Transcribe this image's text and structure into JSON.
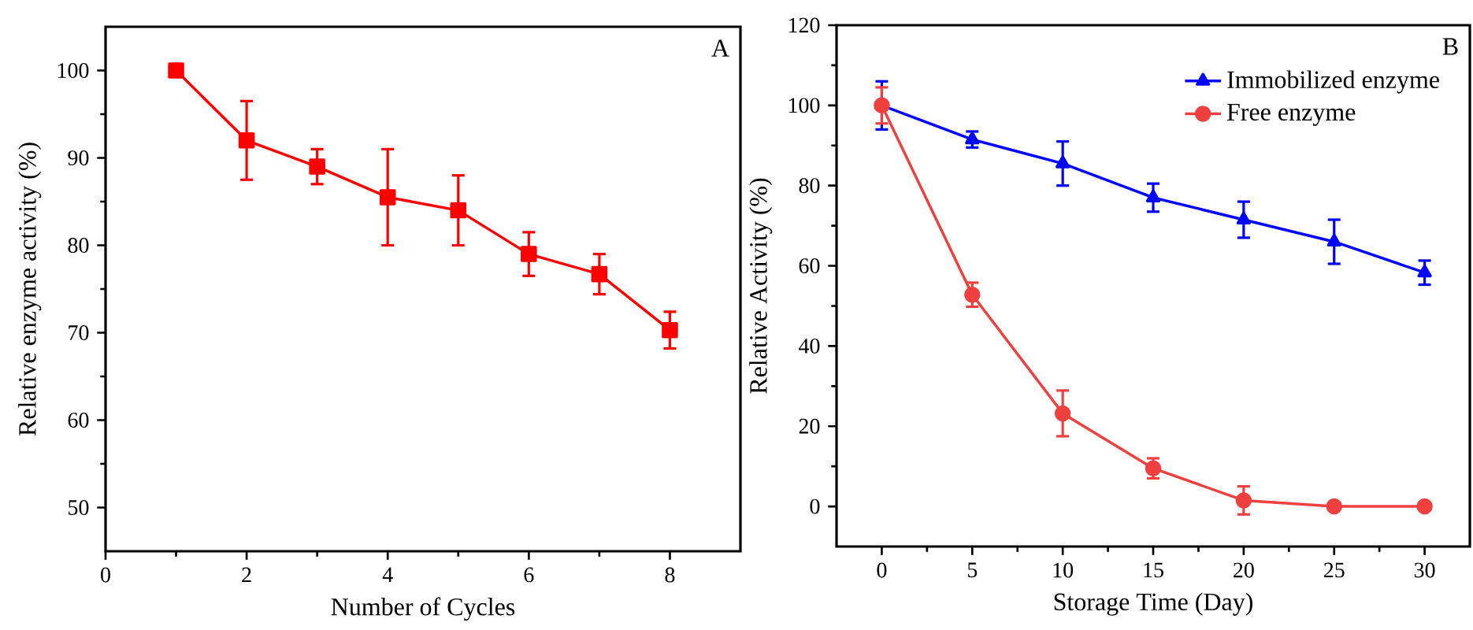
{
  "chart_data": [
    {
      "type": "line",
      "xlabel": "Number of Cycles",
      "ylabel": "Relative enzyme activity (%)",
      "annotations": [
        "A"
      ],
      "x": [
        1,
        2,
        3,
        4,
        5,
        6,
        7,
        8
      ],
      "series": [
        {
          "color": "#ff0000",
          "marker": "square",
          "values": [
            100,
            92,
            89,
            85.5,
            84,
            79,
            76.7,
            70.3
          ],
          "errors": [
            null,
            4.5,
            2,
            5.5,
            4,
            2.5,
            2.3,
            2.1
          ]
        }
      ],
      "xlim": [
        0,
        9
      ],
      "ylim": [
        45,
        105
      ],
      "xticks": [
        0,
        2,
        4,
        6,
        8
      ],
      "yticks": [
        50,
        60,
        70,
        80,
        90,
        100
      ],
      "grid": false,
      "legend": false
    },
    {
      "type": "line",
      "xlabel": "Storage Time (Day)",
      "ylabel": "Relative Activity (%)",
      "annotations": [
        "B"
      ],
      "x": [
        0,
        5,
        10,
        15,
        20,
        25,
        30
      ],
      "series": [
        {
          "name": "Immobilized enzyme",
          "color": "#0000ff",
          "marker": "triangle",
          "values": [
            100,
            91.5,
            85.5,
            77,
            71.5,
            66,
            58.3
          ],
          "errors": [
            6,
            2,
            5.5,
            3.5,
            4.5,
            5.5,
            3
          ]
        },
        {
          "name": "Free enzyme",
          "color": "#ef4040",
          "marker": "circle",
          "values": [
            100,
            52.8,
            23.2,
            9.5,
            1.5,
            0,
            0
          ],
          "errors": [
            4.5,
            3,
            5.7,
            2.5,
            3.5,
            null,
            null
          ]
        }
      ],
      "xlim": [
        -2.5,
        32.5
      ],
      "ylim": [
        -10,
        120
      ],
      "xticks": [
        0,
        5,
        10,
        15,
        20,
        25,
        30
      ],
      "yticks": [
        0,
        20,
        40,
        60,
        80,
        100,
        120
      ],
      "grid": false,
      "legend": "top right"
    }
  ]
}
